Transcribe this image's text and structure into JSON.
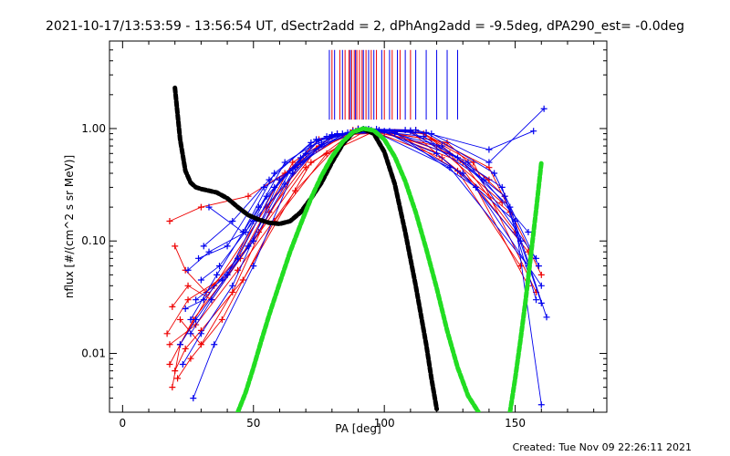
{
  "chart_data": {
    "type": "scatter",
    "title": "2021-10-17/13:53:59 - 13:56:54 UT, dSectr2add = 2, dPhAng2add = -9.5deg, dPA290_est= -0.0deg",
    "xlabel": "PA [deg]",
    "ylabel": "nflux [#/(cm^2 s sr MeV)]",
    "xlim": [
      -5,
      185
    ],
    "ylim": [
      0.003,
      6.0
    ],
    "yscale": "log",
    "x_ticks": [
      0,
      50,
      100,
      150
    ],
    "x_tick_labels": [
      "0",
      "50",
      "100",
      "150"
    ],
    "y_ticks": [
      0.01,
      0.1,
      1.0
    ],
    "y_tick_labels": [
      "0.01",
      "0.10",
      "1.00"
    ],
    "footer": "Created: Tue Nov 09 22:26:11 2021",
    "pa_marker_lines": {
      "y_from": 1.2,
      "y_to": 5.0,
      "red": [
        80,
        83,
        85,
        86.5,
        87.5,
        88.5,
        89.5,
        90.5,
        91.5,
        93,
        95,
        97,
        100,
        103,
        106,
        110
      ],
      "blue": [
        79,
        81,
        84,
        87,
        89,
        92,
        94,
        96,
        99,
        102,
        105,
        108,
        112,
        116,
        120,
        124,
        128
      ]
    },
    "fit_curves": [
      {
        "name": "black",
        "color": "#000000",
        "x": [
          20,
          22,
          24,
          26,
          28,
          30,
          33,
          36,
          40,
          44,
          48,
          52,
          56,
          60,
          64,
          68,
          72,
          76,
          80,
          84,
          88,
          92,
          96,
          100,
          104,
          108,
          112,
          116,
          118,
          120
        ],
        "y": [
          2.3,
          0.8,
          0.42,
          0.33,
          0.3,
          0.29,
          0.28,
          0.27,
          0.24,
          0.2,
          0.17,
          0.155,
          0.145,
          0.142,
          0.15,
          0.18,
          0.24,
          0.33,
          0.5,
          0.72,
          0.92,
          0.99,
          0.9,
          0.62,
          0.32,
          0.12,
          0.04,
          0.012,
          0.006,
          0.0032
        ]
      },
      {
        "name": "green-main",
        "color": "#22dd22",
        "x": [
          44,
          47,
          50,
          53,
          56,
          60,
          64,
          68,
          72,
          76,
          80,
          84,
          88,
          92,
          96,
          100,
          104,
          108,
          112,
          116,
          120,
          124,
          128,
          132,
          136
        ],
        "y": [
          0.003,
          0.0045,
          0.0075,
          0.013,
          0.022,
          0.042,
          0.08,
          0.14,
          0.24,
          0.38,
          0.56,
          0.76,
          0.93,
          1.0,
          0.96,
          0.8,
          0.56,
          0.34,
          0.18,
          0.085,
          0.038,
          0.016,
          0.0075,
          0.0042,
          0.003
        ]
      },
      {
        "name": "green-right",
        "color": "#22dd22",
        "x": [
          148,
          150,
          152,
          154,
          156,
          158,
          160
        ],
        "y": [
          0.003,
          0.006,
          0.013,
          0.03,
          0.075,
          0.19,
          0.5
        ]
      }
    ],
    "series": [
      {
        "name": "red",
        "color": "#ee0000",
        "lines": [
          {
            "x": [
              17,
              25,
              40,
              60,
              75,
              95,
              120,
              145
            ],
            "y": [
              0.015,
              0.03,
              0.05,
              0.35,
              0.8,
              0.95,
              0.7,
              0.22
            ]
          },
          {
            "x": [
              18,
              27,
              45,
              65,
              82,
              100,
              130,
              150
            ],
            "y": [
              0.008,
              0.02,
              0.07,
              0.5,
              0.9,
              0.92,
              0.5,
              0.12
            ]
          },
          {
            "x": [
              19,
              22,
              35,
              55,
              75,
              92,
              118,
              140
            ],
            "y": [
              0.005,
              0.012,
              0.04,
              0.2,
              0.7,
              0.98,
              0.8,
              0.35
            ]
          },
          {
            "x": [
              18,
              30,
              48,
              62,
              80,
              98,
              125,
              155
            ],
            "y": [
              0.15,
              0.2,
              0.25,
              0.4,
              0.85,
              0.96,
              0.6,
              0.08
            ]
          },
          {
            "x": [
              20,
              24,
              32,
              50,
              70,
              90,
              115,
              140,
              160
            ],
            "y": [
              0.09,
              0.055,
              0.035,
              0.1,
              0.45,
              1.0,
              0.9,
              0.45,
              0.05
            ]
          },
          {
            "x": [
              21,
              26,
              38,
              58,
              78,
              96,
              122,
              148
            ],
            "y": [
              0.006,
              0.009,
              0.02,
              0.15,
              0.6,
              0.94,
              0.55,
              0.18
            ]
          },
          {
            "x": [
              19,
              25,
              34,
              52,
              68,
              88,
              110,
              135,
              155
            ],
            "y": [
              0.026,
              0.04,
              0.03,
              0.12,
              0.5,
              0.97,
              0.95,
              0.3,
              0.04
            ]
          },
          {
            "x": [
              18,
              28,
              44,
              66,
              86,
              104,
              128,
              152
            ],
            "y": [
              0.012,
              0.018,
              0.055,
              0.28,
              0.88,
              0.93,
              0.42,
              0.06
            ]
          },
          {
            "x": [
              20,
              24,
              30,
              46,
              72,
              94,
              124,
              146
            ],
            "y": [
              0.007,
              0.011,
              0.016,
              0.045,
              0.5,
              0.99,
              0.75,
              0.25
            ]
          },
          {
            "x": [
              22,
              30,
              42,
              56,
              74,
              92,
              112,
              134,
              158
            ],
            "y": [
              0.02,
              0.012,
              0.035,
              0.18,
              0.65,
              0.99,
              0.97,
              0.5,
              0.035
            ]
          }
        ]
      },
      {
        "name": "blue",
        "color": "#0000ee",
        "lines": [
          {
            "x": [
              27,
              35,
              50,
              65,
              80,
              97,
              120,
              150,
              160
            ],
            "y": [
              0.004,
              0.012,
              0.06,
              0.4,
              0.88,
              0.99,
              0.6,
              0.15,
              0.0035
            ]
          },
          {
            "x": [
              22,
              28,
              40,
              55,
              72,
              90,
              115,
              145,
              158
            ],
            "y": [
              0.012,
              0.02,
              0.05,
              0.25,
              0.7,
              0.99,
              0.85,
              0.3,
              0.03
            ]
          },
          {
            "x": [
              25,
              33,
              47,
              62,
              78,
              95,
              125,
              155
            ],
            "y": [
              0.055,
              0.08,
              0.12,
              0.5,
              0.85,
              0.97,
              0.45,
              0.06
            ]
          },
          {
            "x": [
              24,
              31,
              44,
              58,
              75,
              93,
              118,
              140,
              161
            ],
            "y": [
              0.025,
              0.03,
              0.07,
              0.3,
              0.78,
              0.98,
              0.9,
              0.5,
              1.5
            ]
          },
          {
            "x": [
              26,
              36,
              52,
              70,
              86,
              100,
              130,
              152
            ],
            "y": [
              0.02,
              0.05,
              0.2,
              0.6,
              0.92,
              0.95,
              0.4,
              0.1
            ]
          },
          {
            "x": [
              23,
              30,
              42,
              60,
              82,
              104,
              135,
              160
            ],
            "y": [
              0.008,
              0.015,
              0.04,
              0.35,
              0.9,
              0.92,
              0.3,
              0.04
            ]
          },
          {
            "x": [
              28,
              38,
              50,
              68,
              88,
              110,
              138,
              155
            ],
            "y": [
              0.03,
              0.045,
              0.1,
              0.55,
              0.95,
              0.96,
              0.35,
              0.12
            ]
          },
          {
            "x": [
              29,
              40,
              54,
              66,
              84,
              102,
              128,
              148,
              162
            ],
            "y": [
              0.07,
              0.09,
              0.3,
              0.45,
              0.9,
              0.95,
              0.55,
              0.2,
              0.021
            ]
          },
          {
            "x": [
              31,
              42,
              56,
              72,
              90,
              108,
              132,
              158
            ],
            "y": [
              0.09,
              0.15,
              0.35,
              0.75,
              0.98,
              0.97,
              0.5,
              0.07
            ]
          },
          {
            "x": [
              33,
              46,
              58,
              74,
              92,
              112,
              140,
              157
            ],
            "y": [
              0.2,
              0.12,
              0.4,
              0.8,
              0.99,
              0.97,
              0.65,
              0.95
            ]
          },
          {
            "x": [
              26,
              34,
              48,
              64,
              80,
              98,
              122,
              146,
              160
            ],
            "y": [
              0.015,
              0.03,
              0.09,
              0.42,
              0.87,
              0.97,
              0.7,
              0.25,
              0.028
            ]
          },
          {
            "x": [
              30,
              37,
              50,
              62,
              76,
              94,
              116,
              142,
              159
            ],
            "y": [
              0.045,
              0.06,
              0.15,
              0.32,
              0.72,
              0.99,
              0.92,
              0.4,
              0.06
            ]
          }
        ]
      }
    ]
  }
}
